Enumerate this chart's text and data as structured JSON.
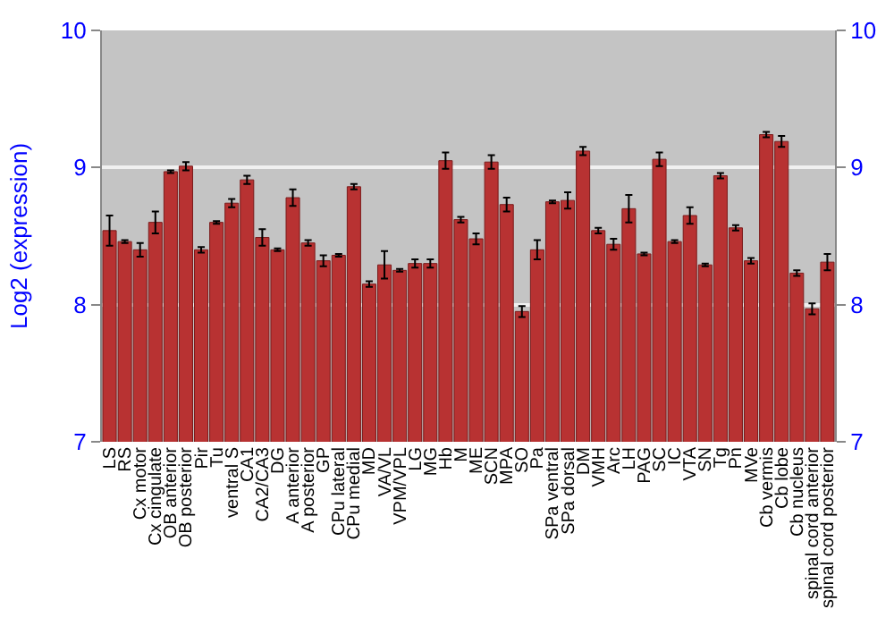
{
  "chart_data": {
    "type": "bar",
    "ylabel": "Log2 (expression)",
    "categories": [
      "LS",
      "RS",
      "Cx motor",
      "Cx cingulate",
      "OB anterior",
      "OB posterior",
      "Pir",
      "Tu",
      "ventral S",
      "CA1",
      "CA2/CA3",
      "DG",
      "A anterior",
      "A posterior",
      "GP",
      "CPu lateral",
      "CPu medial",
      "MD",
      "VA/VL",
      "VPM/VPL",
      "LG",
      "MG",
      "Hb",
      "M",
      "ME",
      "SCN",
      "MPA",
      "SO",
      "Pa",
      "SPa ventral",
      "SPa dorsal",
      "DM",
      "VMH",
      "Arc",
      "LH",
      "PAG",
      "SC",
      "IC",
      "VTA",
      "SN",
      "Tg",
      "Pn",
      "MVe",
      "Cb vermis",
      "Cb lobe",
      "Cb nucleus",
      "spinal cord anterior",
      "spinal cord posterior"
    ],
    "values": [
      8.54,
      8.46,
      8.4,
      8.6,
      8.97,
      9.01,
      8.4,
      8.6,
      8.74,
      8.91,
      8.49,
      8.4,
      8.78,
      8.45,
      8.32,
      8.36,
      8.86,
      8.15,
      8.29,
      8.25,
      8.3,
      8.3,
      9.05,
      8.62,
      8.48,
      9.04,
      8.73,
      7.95,
      8.4,
      8.75,
      8.76,
      9.12,
      8.54,
      8.44,
      8.7,
      8.37,
      9.06,
      8.46,
      8.65,
      8.29,
      8.94,
      8.56,
      8.32,
      9.24,
      9.19,
      8.23,
      7.97,
      8.31
    ],
    "errors": [
      0.11,
      0.01,
      0.05,
      0.08,
      0.01,
      0.03,
      0.02,
      0.01,
      0.03,
      0.03,
      0.06,
      0.01,
      0.06,
      0.02,
      0.04,
      0.01,
      0.02,
      0.02,
      0.1,
      0.01,
      0.03,
      0.03,
      0.06,
      0.02,
      0.04,
      0.05,
      0.05,
      0.04,
      0.07,
      0.01,
      0.06,
      0.03,
      0.02,
      0.04,
      0.1,
      0.01,
      0.05,
      0.01,
      0.06,
      0.01,
      0.02,
      0.02,
      0.02,
      0.02,
      0.04,
      0.02,
      0.04,
      0.06
    ],
    "color": "#b83232",
    "ylim": [
      7,
      10
    ],
    "yticks": [
      7,
      8,
      9,
      10
    ],
    "y2lim": [
      7,
      10
    ],
    "y2ticks": [
      7,
      8,
      9,
      10
    ],
    "grid": "y"
  }
}
